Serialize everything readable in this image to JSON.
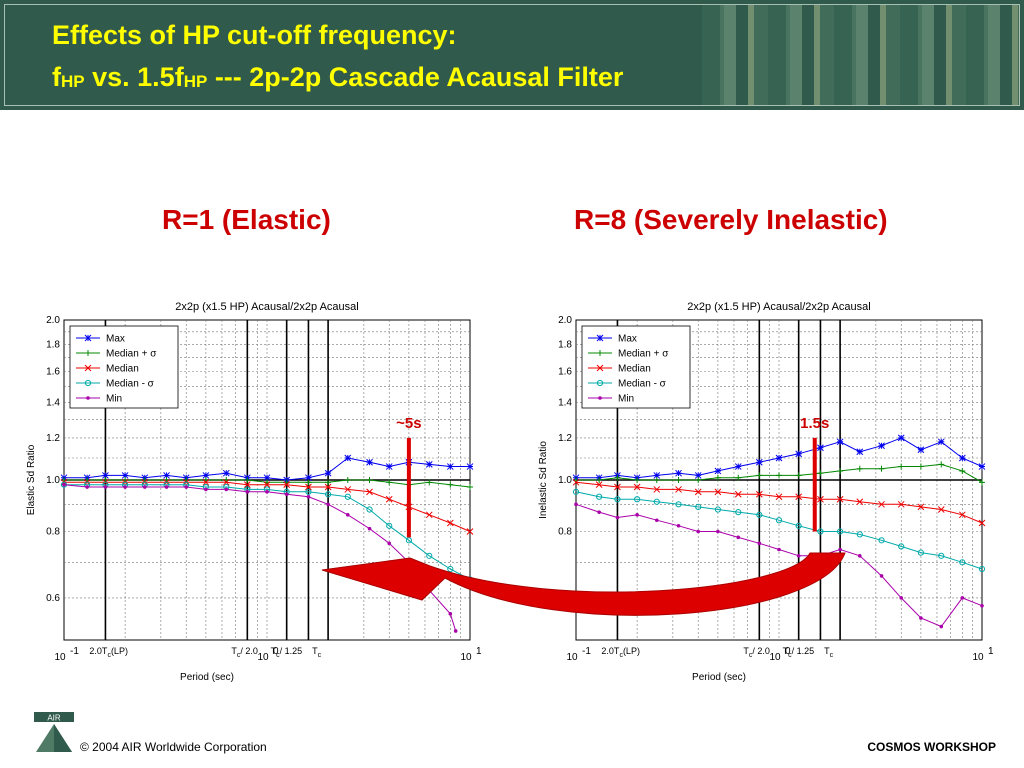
{
  "slide": {
    "title_line1": "Effects of HP cut-off frequency:",
    "title_line2_parts": [
      "f",
      "HP",
      " vs. 1.5f",
      "HP",
      " --- 2p-2p Cascade Acausal Filter"
    ],
    "heading_left": "R=1 (Elastic)",
    "heading_right": "R=8 (Severely Inelastic)",
    "footer_copyright": "© 2004 AIR Worldwide Corporation",
    "footer_workshop": "COSMOS WORKSHOP",
    "logo_text": "AIR",
    "colors": {
      "header_bg": "#2f5a4c",
      "title": "#ffff00",
      "heading": "#cc0000",
      "arrow": "#dd0000"
    }
  },
  "chart_data": [
    {
      "type": "line",
      "title": "2x2p (x1.5 HP) Acausal/2x2p Acausal",
      "xlabel": "Period (sec)",
      "ylabel": "Elastic Sd Ratio",
      "xscale": "log",
      "yscale": "log",
      "xlim": [
        0.1,
        10
      ],
      "ylim": [
        0.5,
        2.0
      ],
      "y_ticks": [
        0.6,
        0.8,
        1.0,
        1.2,
        1.4,
        1.6,
        1.8,
        2.0
      ],
      "x_tick_labels": [
        "10",
        "-1",
        "10",
        "0",
        "10",
        "1"
      ],
      "grid": true,
      "legend_position": "top-left",
      "vertical_line_labels": [
        "2.0T",
        "c",
        "(LP)",
        "T",
        "c",
        "/ 2.0",
        "T",
        "c",
        "/ 1.25",
        "T",
        "c"
      ],
      "vertical_lines_x": [
        0.16,
        0.8,
        1.25,
        1.6,
        2.0
      ],
      "marker": {
        "label": "~5s",
        "x": 5,
        "y_from": 0.78,
        "y_to": 1.2
      },
      "series": [
        {
          "name": "Max",
          "color": "#0000ee",
          "symbol": "star",
          "x": [
            0.1,
            0.13,
            0.16,
            0.2,
            0.25,
            0.32,
            0.4,
            0.5,
            0.63,
            0.8,
            1.0,
            1.25,
            1.6,
            2.0,
            2.5,
            3.2,
            4.0,
            5.0,
            6.3,
            8.0,
            10
          ],
          "y": [
            1.01,
            1.01,
            1.02,
            1.02,
            1.01,
            1.02,
            1.01,
            1.02,
            1.03,
            1.01,
            1.01,
            1.0,
            1.01,
            1.03,
            1.1,
            1.08,
            1.06,
            1.08,
            1.07,
            1.06,
            1.06
          ]
        },
        {
          "name": "Median + σ",
          "color": "#008800",
          "symbol": "plus",
          "x": [
            0.1,
            0.13,
            0.16,
            0.2,
            0.25,
            0.32,
            0.4,
            0.5,
            0.63,
            0.8,
            1.0,
            1.25,
            1.6,
            2.0,
            2.5,
            3.2,
            4.0,
            5.0,
            6.3,
            8.0,
            10
          ],
          "y": [
            1.0,
            1.0,
            1.0,
            1.0,
            1.0,
            1.0,
            1.0,
            1.0,
            1.0,
            1.0,
            0.99,
            0.99,
            0.99,
            0.99,
            1.0,
            1.0,
            0.99,
            0.98,
            0.99,
            0.98,
            0.97
          ]
        },
        {
          "name": "Median",
          "color": "#ee0000",
          "symbol": "x",
          "x": [
            0.1,
            0.13,
            0.16,
            0.2,
            0.25,
            0.32,
            0.4,
            0.5,
            0.63,
            0.8,
            1.0,
            1.25,
            1.6,
            2.0,
            2.5,
            3.2,
            4.0,
            5.0,
            6.3,
            8.0,
            10
          ],
          "y": [
            0.99,
            0.99,
            0.99,
            0.99,
            0.99,
            0.99,
            0.99,
            0.99,
            0.99,
            0.98,
            0.98,
            0.98,
            0.97,
            0.97,
            0.96,
            0.95,
            0.92,
            0.89,
            0.86,
            0.83,
            0.8
          ]
        },
        {
          "name": "Median - σ",
          "color": "#00aaaa",
          "symbol": "circle",
          "x": [
            0.1,
            0.13,
            0.16,
            0.2,
            0.25,
            0.32,
            0.4,
            0.5,
            0.63,
            0.8,
            1.0,
            1.25,
            1.6,
            2.0,
            2.5,
            3.2,
            4.0,
            5.0,
            6.3,
            8.0,
            10
          ],
          "y": [
            0.98,
            0.98,
            0.98,
            0.98,
            0.98,
            0.98,
            0.98,
            0.97,
            0.97,
            0.96,
            0.96,
            0.95,
            0.95,
            0.94,
            0.93,
            0.88,
            0.82,
            0.77,
            0.72,
            0.68,
            0.65
          ]
        },
        {
          "name": "Min",
          "color": "#aa00aa",
          "symbol": "dot",
          "x": [
            0.1,
            0.13,
            0.16,
            0.2,
            0.25,
            0.32,
            0.4,
            0.5,
            0.63,
            0.8,
            1.0,
            1.25,
            1.6,
            2.0,
            2.5,
            3.2,
            4.0,
            5.0,
            6.3,
            8.0,
            8.5
          ],
          "y": [
            0.98,
            0.97,
            0.97,
            0.97,
            0.97,
            0.97,
            0.97,
            0.96,
            0.96,
            0.95,
            0.95,
            0.94,
            0.93,
            0.9,
            0.86,
            0.81,
            0.76,
            0.7,
            0.62,
            0.56,
            0.52
          ]
        }
      ]
    },
    {
      "type": "line",
      "title": "2x2p (x1.5 HP) Acausal/2x2p Acausal",
      "xlabel": "Period (sec)",
      "ylabel": "Inelastic Sd Ratio",
      "xscale": "log",
      "yscale": "log",
      "xlim": [
        0.1,
        10
      ],
      "ylim": [
        0.5,
        2.0
      ],
      "y_ticks": [
        0.6,
        0.8,
        1.0,
        1.2,
        1.4,
        1.6,
        1.8,
        2.0
      ],
      "x_tick_labels": [
        "10",
        "-1",
        "10",
        "0",
        "10",
        "1"
      ],
      "grid": true,
      "legend_position": "top-left",
      "vertical_line_labels": [
        "2.0T",
        "c",
        "(LP)",
        "T",
        "c",
        "/ 2.0",
        "T",
        "c",
        "/ 1.25",
        "T",
        "c"
      ],
      "vertical_lines_x": [
        0.16,
        0.8,
        1.25,
        1.6,
        2.0
      ],
      "marker": {
        "label": "1.5s",
        "x": 1.5,
        "y_from": 0.8,
        "y_to": 1.2
      },
      "series": [
        {
          "name": "Max",
          "color": "#0000ee",
          "symbol": "star",
          "x": [
            0.1,
            0.13,
            0.16,
            0.2,
            0.25,
            0.32,
            0.4,
            0.5,
            0.63,
            0.8,
            1.0,
            1.25,
            1.6,
            2.0,
            2.5,
            3.2,
            4.0,
            5.0,
            6.3,
            8.0,
            10
          ],
          "y": [
            1.01,
            1.01,
            1.02,
            1.01,
            1.02,
            1.03,
            1.02,
            1.04,
            1.06,
            1.08,
            1.1,
            1.12,
            1.15,
            1.18,
            1.13,
            1.16,
            1.2,
            1.14,
            1.18,
            1.1,
            1.06
          ]
        },
        {
          "name": "Median + σ",
          "color": "#008800",
          "symbol": "plus",
          "x": [
            0.1,
            0.13,
            0.16,
            0.2,
            0.25,
            0.32,
            0.4,
            0.5,
            0.63,
            0.8,
            1.0,
            1.25,
            1.6,
            2.0,
            2.5,
            3.2,
            4.0,
            5.0,
            6.3,
            8.0,
            10
          ],
          "y": [
            1.0,
            1.0,
            1.01,
            1.0,
            1.0,
            1.0,
            1.0,
            1.01,
            1.01,
            1.02,
            1.02,
            1.02,
            1.03,
            1.04,
            1.05,
            1.05,
            1.06,
            1.06,
            1.07,
            1.04,
            0.99
          ]
        },
        {
          "name": "Median",
          "color": "#ee0000",
          "symbol": "x",
          "x": [
            0.1,
            0.13,
            0.16,
            0.2,
            0.25,
            0.32,
            0.4,
            0.5,
            0.63,
            0.8,
            1.0,
            1.25,
            1.6,
            2.0,
            2.5,
            3.2,
            4.0,
            5.0,
            6.3,
            8.0,
            10
          ],
          "y": [
            0.99,
            0.98,
            0.97,
            0.97,
            0.96,
            0.96,
            0.95,
            0.95,
            0.94,
            0.94,
            0.93,
            0.93,
            0.92,
            0.92,
            0.91,
            0.9,
            0.9,
            0.89,
            0.88,
            0.86,
            0.83
          ]
        },
        {
          "name": "Median - σ",
          "color": "#00aaaa",
          "symbol": "circle",
          "x": [
            0.1,
            0.13,
            0.16,
            0.2,
            0.25,
            0.32,
            0.4,
            0.5,
            0.63,
            0.8,
            1.0,
            1.25,
            1.6,
            2.0,
            2.5,
            3.2,
            4.0,
            5.0,
            6.3,
            8.0,
            10
          ],
          "y": [
            0.95,
            0.93,
            0.92,
            0.92,
            0.91,
            0.9,
            0.89,
            0.88,
            0.87,
            0.86,
            0.84,
            0.82,
            0.8,
            0.8,
            0.79,
            0.77,
            0.75,
            0.73,
            0.72,
            0.7,
            0.68
          ]
        },
        {
          "name": "Min",
          "color": "#aa00aa",
          "symbol": "dot",
          "x": [
            0.1,
            0.13,
            0.16,
            0.2,
            0.25,
            0.32,
            0.4,
            0.5,
            0.63,
            0.8,
            1.0,
            1.25,
            1.6,
            2.0,
            2.5,
            3.2,
            4.0,
            5.0,
            6.3,
            8.0,
            10
          ],
          "y": [
            0.9,
            0.87,
            0.85,
            0.86,
            0.84,
            0.82,
            0.8,
            0.8,
            0.78,
            0.76,
            0.74,
            0.72,
            0.72,
            0.74,
            0.72,
            0.66,
            0.6,
            0.55,
            0.53,
            0.6,
            0.58
          ]
        }
      ]
    }
  ]
}
